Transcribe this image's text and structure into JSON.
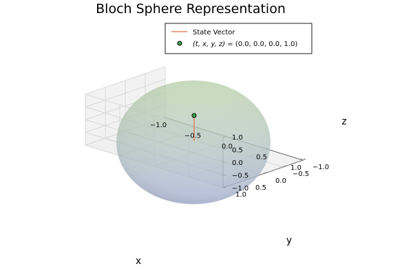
{
  "chart_data": {
    "type": "scatter",
    "title": "Bloch Sphere Representation",
    "xlabel": "x",
    "ylabel": "y",
    "zlabel": "z",
    "xlim": [
      -1.0,
      1.0
    ],
    "ylim": [
      -1.0,
      1.0
    ],
    "zlim": [
      -1.0,
      1.0
    ],
    "xticks": [
      "−1.0",
      "−0.5",
      "0.0",
      "0.5",
      "1.0"
    ],
    "yticks": [
      "−1.0",
      "−0.5",
      "0.0",
      "0.5",
      "1.0"
    ],
    "zticks": [
      "−1.0",
      "−0.5",
      "0.0",
      "0.5",
      "1.0"
    ],
    "grid": true,
    "legend_position": "top-right",
    "series": [
      {
        "name": "State Vector",
        "kind": "line",
        "color": "#e26f46",
        "points": [
          [
            0.0,
            0.0,
            0.0
          ],
          [
            0.0,
            0.0,
            1.0
          ]
        ]
      },
      {
        "name_prefix": "(t, x, y, z)",
        "name_value": " = (0.0, 0.0, 0.0, 1.0)",
        "kind": "scatter",
        "color": "#3da44d",
        "points": [
          [
            0.0,
            0.0,
            1.0
          ]
        ]
      }
    ],
    "sphere": {
      "radius": 1.0,
      "top_color": "#b8d1a6",
      "bottom_color": "#a7b4de"
    }
  }
}
